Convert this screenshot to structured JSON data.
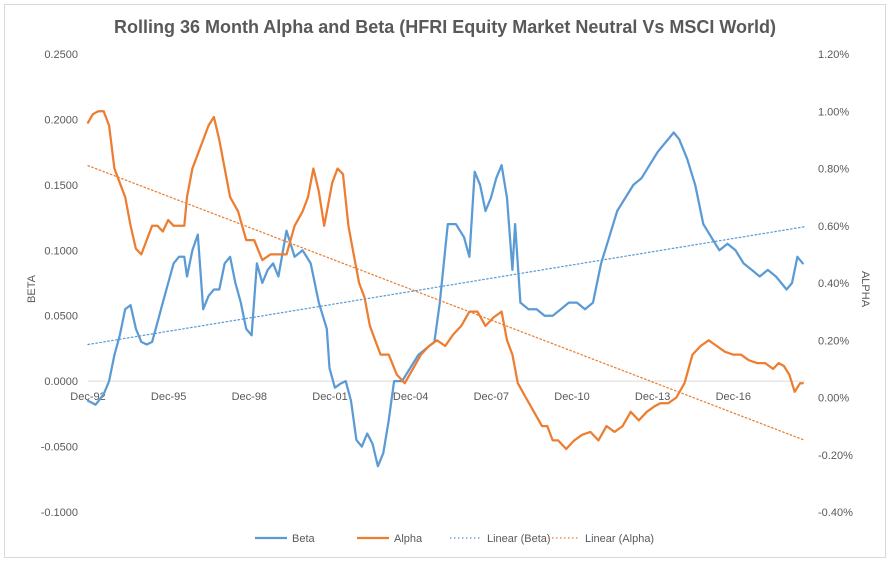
{
  "chart_data": {
    "type": "line",
    "title": "Rolling 36 Month Alpha and Beta (HFRI Equity Market Neutral Vs MSCI World)",
    "ylabel_left": "BETA",
    "ylabel_right": "ALPHA",
    "y_left": {
      "min": -0.1,
      "max": 0.25,
      "step": 0.05,
      "tick_labels": [
        "-0.1000",
        "-0.0500",
        "0.0000",
        "0.0500",
        "0.1000",
        "0.1500",
        "0.2000",
        "0.2500"
      ]
    },
    "y_right": {
      "min": -0.4,
      "max": 1.2,
      "step": 0.2,
      "tick_labels": [
        "-0.40%",
        "-0.20%",
        "0.00%",
        "0.20%",
        "0.40%",
        "0.60%",
        "0.80%",
        "1.00%",
        "1.20%"
      ]
    },
    "x_range": [
      1992.917,
      2019.583
    ],
    "x_tick_years": [
      1992.917,
      1995.917,
      1998.917,
      2001.917,
      2004.917,
      2007.917,
      2010.917,
      2013.917,
      2016.917
    ],
    "x_tick_labels": [
      "Dec-92",
      "Dec-95",
      "Dec-98",
      "Dec-01",
      "Dec-04",
      "Dec-07",
      "Dec-10",
      "Dec-13",
      "Dec-16"
    ],
    "legend": [
      "Beta",
      "Alpha",
      "Linear (Beta)",
      "Linear (Alpha)"
    ],
    "legend_position": "bottom",
    "grid": false,
    "colors": {
      "beta": "#5b9bd5",
      "alpha": "#ed7d31",
      "axis": "#d9d9d9"
    },
    "series": [
      {
        "name": "Beta",
        "axis": "left",
        "x": [
          1992.917,
          1993.2,
          1993.5,
          1993.7,
          1993.9,
          1994.1,
          1994.3,
          1994.5,
          1994.7,
          1994.9,
          1995.1,
          1995.3,
          1995.5,
          1995.7,
          1995.9,
          1996.1,
          1996.3,
          1996.5,
          1996.6,
          1996.8,
          1997.0,
          1997.2,
          1997.4,
          1997.6,
          1997.8,
          1998.0,
          1998.2,
          1998.4,
          1998.6,
          1998.8,
          1999.0,
          1999.2,
          1999.4,
          1999.6,
          1999.8,
          2000.0,
          2000.3,
          2000.6,
          2000.9,
          2001.2,
          2001.5,
          2001.8,
          2001.9,
          2002.1,
          2002.3,
          2002.5,
          2002.7,
          2002.9,
          2003.1,
          2003.3,
          2003.5,
          2003.7,
          2003.9,
          2004.1,
          2004.3,
          2004.6,
          2004.9,
          2005.2,
          2005.5,
          2005.8,
          2006.0,
          2006.3,
          2006.6,
          2006.9,
          2007.1,
          2007.3,
          2007.5,
          2007.7,
          2007.9,
          2008.1,
          2008.3,
          2008.5,
          2008.7,
          2008.8,
          2009.0,
          2009.3,
          2009.6,
          2009.9,
          2010.2,
          2010.5,
          2010.8,
          2011.1,
          2011.4,
          2011.7,
          2012.0,
          2012.3,
          2012.6,
          2012.9,
          2013.2,
          2013.5,
          2013.8,
          2014.1,
          2014.3,
          2014.5,
          2014.7,
          2014.9,
          2015.2,
          2015.5,
          2015.8,
          2016.1,
          2016.4,
          2016.7,
          2017.0,
          2017.3,
          2017.6,
          2017.9,
          2018.2,
          2018.5,
          2018.7,
          2018.9,
          2019.1,
          2019.3,
          2019.5
        ],
        "values": [
          -0.015,
          -0.018,
          -0.01,
          0.0,
          0.02,
          0.035,
          0.055,
          0.058,
          0.04,
          0.03,
          0.028,
          0.03,
          0.045,
          0.06,
          0.075,
          0.09,
          0.095,
          0.095,
          0.08,
          0.1,
          0.112,
          0.055,
          0.065,
          0.07,
          0.07,
          0.09,
          0.095,
          0.075,
          0.06,
          0.04,
          0.035,
          0.09,
          0.075,
          0.085,
          0.09,
          0.08,
          0.115,
          0.095,
          0.1,
          0.09,
          0.06,
          0.04,
          0.01,
          -0.005,
          -0.002,
          0.0,
          -0.015,
          -0.045,
          -0.05,
          -0.04,
          -0.048,
          -0.065,
          -0.055,
          -0.03,
          0.0,
          0.0,
          0.01,
          0.02,
          0.025,
          0.03,
          0.06,
          0.12,
          0.12,
          0.11,
          0.095,
          0.16,
          0.15,
          0.13,
          0.14,
          0.155,
          0.165,
          0.14,
          0.085,
          0.12,
          0.06,
          0.055,
          0.055,
          0.05,
          0.05,
          0.055,
          0.06,
          0.06,
          0.055,
          0.06,
          0.09,
          0.11,
          0.13,
          0.14,
          0.15,
          0.155,
          0.165,
          0.175,
          0.18,
          0.185,
          0.19,
          0.185,
          0.17,
          0.15,
          0.12,
          0.11,
          0.1,
          0.105,
          0.1,
          0.09,
          0.085,
          0.08,
          0.085,
          0.08,
          0.075,
          0.07,
          0.075,
          0.095,
          0.09
        ]
      },
      {
        "name": "Alpha",
        "axis": "right",
        "x": [
          1992.917,
          1993.1,
          1993.3,
          1993.5,
          1993.7,
          1993.9,
          1994.1,
          1994.3,
          1994.5,
          1994.7,
          1994.9,
          1995.1,
          1995.3,
          1995.5,
          1995.7,
          1995.9,
          1996.1,
          1996.3,
          1996.5,
          1996.6,
          1996.8,
          1997.0,
          1997.2,
          1997.4,
          1997.6,
          1997.8,
          1998.0,
          1998.2,
          1998.5,
          1998.8,
          1999.1,
          1999.4,
          1999.7,
          2000.0,
          2000.3,
          2000.6,
          2000.9,
          2001.1,
          2001.3,
          2001.5,
          2001.7,
          2002.0,
          2002.2,
          2002.4,
          2002.6,
          2002.8,
          2003.0,
          2003.2,
          2003.4,
          2003.6,
          2003.8,
          2004.1,
          2004.4,
          2004.7,
          2005.0,
          2005.3,
          2005.6,
          2005.9,
          2006.2,
          2006.5,
          2006.8,
          2007.1,
          2007.4,
          2007.7,
          2008.0,
          2008.3,
          2008.5,
          2008.7,
          2008.9,
          2009.2,
          2009.5,
          2009.8,
          2010.0,
          2010.2,
          2010.4,
          2010.7,
          2011.0,
          2011.3,
          2011.6,
          2011.9,
          2012.2,
          2012.5,
          2012.8,
          2013.1,
          2013.4,
          2013.7,
          2014.0,
          2014.2,
          2014.5,
          2014.8,
          2015.1,
          2015.4,
          2015.7,
          2016.0,
          2016.3,
          2016.6,
          2016.9,
          2017.2,
          2017.5,
          2017.8,
          2018.1,
          2018.4,
          2018.6,
          2018.8,
          2019.0,
          2019.2,
          2019.4,
          2019.5
        ],
        "values": [
          0.96,
          0.99,
          1.0,
          1.0,
          0.95,
          0.8,
          0.75,
          0.7,
          0.6,
          0.52,
          0.5,
          0.55,
          0.6,
          0.6,
          0.58,
          0.62,
          0.6,
          0.6,
          0.6,
          0.7,
          0.8,
          0.85,
          0.9,
          0.95,
          0.98,
          0.9,
          0.8,
          0.7,
          0.65,
          0.55,
          0.55,
          0.48,
          0.5,
          0.5,
          0.5,
          0.6,
          0.65,
          0.7,
          0.8,
          0.72,
          0.6,
          0.75,
          0.8,
          0.78,
          0.6,
          0.5,
          0.4,
          0.35,
          0.25,
          0.2,
          0.15,
          0.15,
          0.08,
          0.05,
          0.1,
          0.15,
          0.18,
          0.2,
          0.18,
          0.22,
          0.25,
          0.3,
          0.3,
          0.25,
          0.28,
          0.3,
          0.2,
          0.15,
          0.05,
          0.0,
          -0.05,
          -0.1,
          -0.1,
          -0.15,
          -0.15,
          -0.18,
          -0.15,
          -0.13,
          -0.12,
          -0.15,
          -0.1,
          -0.12,
          -0.1,
          -0.05,
          -0.08,
          -0.05,
          -0.03,
          -0.02,
          -0.02,
          0.0,
          0.05,
          0.15,
          0.18,
          0.2,
          0.18,
          0.16,
          0.15,
          0.15,
          0.13,
          0.12,
          0.12,
          0.1,
          0.12,
          0.11,
          0.08,
          0.02,
          0.05,
          0.05
        ]
      },
      {
        "name": "Linear (Beta)",
        "axis": "left",
        "x": [
          1992.917,
          2019.583
        ],
        "values": [
          0.028,
          0.118
        ]
      },
      {
        "name": "Linear (Alpha)",
        "axis": "right",
        "x": [
          1992.917,
          2019.583
        ],
        "values": [
          0.81,
          -0.15
        ]
      }
    ]
  }
}
